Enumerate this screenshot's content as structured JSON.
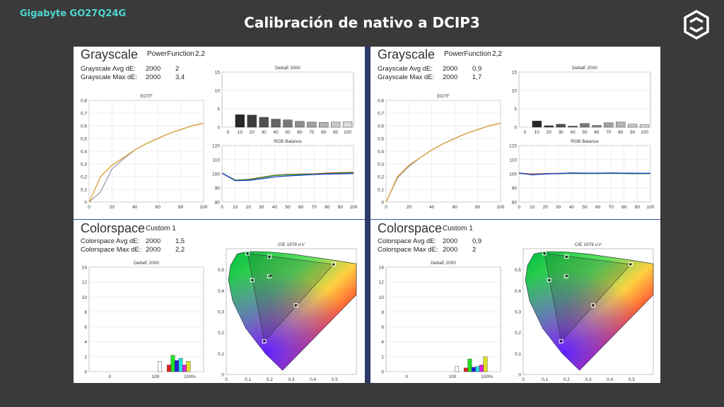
{
  "header": {
    "brand": "Gigabyte GO27Q24G",
    "title": "Calibración de nativo a DCIP3"
  },
  "icons": {
    "logo": "hexagon-logo-icon"
  },
  "colors": {
    "background": "#3a3a3a",
    "brand": "#4fd6d2",
    "red": "#e02020",
    "green": "#1a9a1a",
    "blue": "#1f3fd0",
    "eotf_measured": "#9a9ab0",
    "eotf_target": "#d9a030",
    "divider": "#3355aa"
  },
  "panels": [
    {
      "grayscale": {
        "title": "Grayscale",
        "subtitle": "PowerFunction",
        "gamma": "2,2",
        "stats": [
          {
            "label": "Grayscale Avg dE:",
            "n": "2000",
            "val": "2"
          },
          {
            "label": "Grayscale Max dE:",
            "n": "2000",
            "val": "3,4"
          }
        ]
      },
      "colorspace": {
        "title": "Colorspace",
        "subtitle": "Custom 1",
        "stats": [
          {
            "label": "Colorspace Avg dE:",
            "n": "2000",
            "val": "1,5"
          },
          {
            "label": "Colorspace Max dE:",
            "n": "2000",
            "val": "2,2"
          }
        ]
      }
    },
    {
      "grayscale": {
        "title": "Grayscale",
        "subtitle": "PowerFunction",
        "gamma": "2,2",
        "stats": [
          {
            "label": "Grayscale Avg dE:",
            "n": "2000",
            "val": "0,9"
          },
          {
            "label": "Grayscale Max dE:",
            "n": "2000",
            "val": "1,7"
          }
        ]
      },
      "colorspace": {
        "title": "Colorspace",
        "subtitle": "Custom 1",
        "stats": [
          {
            "label": "Colorspace Avg dE:",
            "n": "2000",
            "val": "0,9"
          },
          {
            "label": "Colorspace Max dE:",
            "n": "2000",
            "val": "2"
          }
        ]
      }
    }
  ],
  "chart_data": [
    {
      "panel": 0,
      "type": "line",
      "title": "EOTF",
      "x": [
        0,
        10,
        20,
        30,
        40,
        50,
        60,
        70,
        80,
        90,
        100
      ],
      "xlim": [
        0,
        100
      ],
      "ylim": [
        0,
        0.8
      ],
      "xticks": [
        "0",
        "20",
        "40",
        "60",
        "80",
        "100"
      ],
      "yticks": [
        "0",
        "0,1",
        "0,2",
        "0,3",
        "0,4",
        "0,5",
        "0,6",
        "0,7",
        "0,8"
      ],
      "series": [
        {
          "color": "#9a9ab0",
          "values": [
            0,
            0.08,
            0.26,
            0.34,
            0.41,
            0.46,
            0.5,
            0.54,
            0.57,
            0.6,
            0.62
          ]
        },
        {
          "color": "#d9a030",
          "values": [
            0,
            0.2,
            0.29,
            0.35,
            0.41,
            0.46,
            0.5,
            0.54,
            0.57,
            0.6,
            0.62
          ]
        }
      ]
    },
    {
      "panel": 0,
      "type": "bar",
      "title": "DeltaE 2000",
      "categories": [
        "0",
        "10",
        "20",
        "30",
        "40",
        "50",
        "60",
        "70",
        "80",
        "90",
        "100"
      ],
      "ylim": [
        0,
        15
      ],
      "yticks": [
        "0",
        "5",
        "10",
        "15"
      ],
      "values": [
        0,
        3.4,
        3.3,
        2.7,
        2.2,
        2.0,
        1.6,
        1.4,
        1.3,
        1.4,
        1.5
      ]
    },
    {
      "panel": 0,
      "type": "line",
      "title": "RGB Balance",
      "x": [
        0,
        10,
        20,
        30,
        40,
        50,
        60,
        70,
        80,
        90,
        100
      ],
      "xlim": [
        0,
        100
      ],
      "ylim": [
        80,
        120
      ],
      "xticks": [
        "0",
        "10",
        "20",
        "30",
        "40",
        "50",
        "60",
        "70",
        "80",
        "90",
        "100"
      ],
      "yticks": [
        "80",
        "90",
        "100",
        "110",
        "120"
      ],
      "series": [
        {
          "color": "#e02020",
          "values": [
            100.5,
            95.5,
            96,
            97.5,
            99,
            99.5,
            99.8,
            100,
            100.5,
            100.8,
            101
          ]
        },
        {
          "color": "#1a9a1a",
          "values": [
            100.5,
            95.5,
            95.8,
            97.3,
            98.8,
            99.3,
            99.6,
            99.8,
            100.2,
            100.5,
            100.7
          ]
        },
        {
          "color": "#1f3fd0",
          "values": [
            100.5,
            95.2,
            95.3,
            96.5,
            97.8,
            98.5,
            99,
            99.5,
            99.8,
            100,
            100.2
          ]
        }
      ]
    },
    {
      "panel": 0,
      "type": "bar",
      "title": "DeltaE 2000",
      "xticks": [
        "0",
        "100",
        "100%"
      ],
      "ylim": [
        0,
        14
      ],
      "yticks": [
        "0",
        "2",
        "4",
        "6",
        "8",
        "10",
        "12",
        "14"
      ],
      "series": [
        {
          "color": "#ffffff",
          "values": [
            1.4
          ]
        },
        {
          "color": "#e02020",
          "values": [
            0.9
          ]
        },
        {
          "color": "#20e020",
          "values": [
            2.2
          ]
        },
        {
          "color": "#2020e0",
          "values": [
            1.5
          ]
        },
        {
          "color": "#20e0e0",
          "values": [
            1.8
          ]
        },
        {
          "color": "#e020e0",
          "values": [
            0.9
          ]
        },
        {
          "color": "#e0e020",
          "values": [
            1.4
          ]
        }
      ]
    },
    {
      "panel": 0,
      "type": "scatter",
      "title": "CIE 1976 u'v'",
      "xlim": [
        0,
        0.6
      ],
      "ylim": [
        0,
        0.6
      ],
      "xticks": [
        "0",
        "0,1",
        "0,2",
        "0,3",
        "0,4",
        "0,5"
      ],
      "yticks": [
        "0",
        "0,1",
        "0,2",
        "0,3",
        "0,4",
        "0,5"
      ],
      "targets": [
        {
          "u": 0.496,
          "v": 0.526
        },
        {
          "u": 0.098,
          "v": 0.578
        },
        {
          "u": 0.175,
          "v": 0.158
        },
        {
          "u": 0.198,
          "v": 0.468
        },
        {
          "u": 0.2,
          "v": 0.562
        },
        {
          "u": 0.12,
          "v": 0.45
        },
        {
          "u": 0.322,
          "v": 0.33
        }
      ],
      "measured": [
        {
          "u": 0.495,
          "v": 0.525
        },
        {
          "u": 0.098,
          "v": 0.577
        },
        {
          "u": 0.176,
          "v": 0.16
        },
        {
          "u": 0.205,
          "v": 0.472
        },
        {
          "u": 0.198,
          "v": 0.56
        },
        {
          "u": 0.121,
          "v": 0.45
        },
        {
          "u": 0.32,
          "v": 0.33
        }
      ]
    },
    {
      "panel": 1,
      "type": "line",
      "title": "EOTF",
      "x": [
        0,
        10,
        20,
        30,
        40,
        50,
        60,
        70,
        80,
        90,
        100
      ],
      "xlim": [
        0,
        100
      ],
      "ylim": [
        0,
        0.8
      ],
      "xticks": [
        "0",
        "20",
        "40",
        "60",
        "80",
        "100"
      ],
      "yticks": [
        "0",
        "0,1",
        "0,2",
        "0,3",
        "0,4",
        "0,5",
        "0,6",
        "0,7",
        "0,8"
      ],
      "series": [
        {
          "color": "#9a9ab0",
          "values": [
            0,
            0.19,
            0.28,
            0.35,
            0.41,
            0.46,
            0.5,
            0.54,
            0.57,
            0.6,
            0.62
          ]
        },
        {
          "color": "#d9a030",
          "values": [
            0,
            0.2,
            0.29,
            0.35,
            0.41,
            0.46,
            0.5,
            0.54,
            0.57,
            0.6,
            0.62
          ]
        }
      ]
    },
    {
      "panel": 1,
      "type": "bar",
      "title": "DeltaE 2000",
      "categories": [
        "0",
        "10",
        "20",
        "30",
        "40",
        "50",
        "60",
        "70",
        "80",
        "90",
        "100"
      ],
      "ylim": [
        0,
        15
      ],
      "yticks": [
        "0",
        "5",
        "10",
        "15"
      ],
      "values": [
        0,
        1.7,
        0.4,
        0.8,
        0.3,
        1.0,
        0.5,
        1.2,
        1.4,
        0.8,
        0.7
      ]
    },
    {
      "panel": 1,
      "type": "line",
      "title": "RGB Balance",
      "x": [
        0,
        10,
        20,
        30,
        40,
        50,
        60,
        70,
        80,
        90,
        100
      ],
      "xlim": [
        0,
        100
      ],
      "ylim": [
        80,
        120
      ],
      "xticks": [
        "0",
        "10",
        "20",
        "30",
        "40",
        "50",
        "60",
        "70",
        "80",
        "90",
        "100"
      ],
      "yticks": [
        "80",
        "90",
        "100",
        "110",
        "120"
      ],
      "series": [
        {
          "color": "#e02020",
          "values": [
            100.5,
            99.8,
            100.2,
            100.3,
            100.5,
            100.4,
            100.3,
            100.4,
            100.3,
            100.2,
            100.3
          ]
        },
        {
          "color": "#1a9a1a",
          "values": [
            100.3,
            99.5,
            100,
            100.1,
            100.3,
            100.2,
            100.2,
            100.3,
            100.2,
            100.1,
            100.2
          ]
        },
        {
          "color": "#1f3fd0",
          "values": [
            100.6,
            99.3,
            99.9,
            100.2,
            100.6,
            100.5,
            100.5,
            100.6,
            100.5,
            100.4,
            100.4
          ]
        }
      ]
    },
    {
      "panel": 1,
      "type": "bar",
      "title": "DeltaE 2000",
      "xticks": [
        "0",
        "100",
        "100%"
      ],
      "ylim": [
        0,
        14
      ],
      "yticks": [
        "0",
        "2",
        "4",
        "6",
        "8",
        "10",
        "12",
        "14"
      ],
      "series": [
        {
          "color": "#ffffff",
          "values": [
            0.7
          ]
        },
        {
          "color": "#e02020",
          "values": [
            0.5
          ]
        },
        {
          "color": "#20e020",
          "values": [
            1.7
          ]
        },
        {
          "color": "#2020e0",
          "values": [
            0.6
          ]
        },
        {
          "color": "#20e0e0",
          "values": [
            0.7
          ]
        },
        {
          "color": "#e020e0",
          "values": [
            0.9
          ]
        },
        {
          "color": "#e0e020",
          "values": [
            2.0
          ]
        }
      ]
    },
    {
      "panel": 1,
      "type": "scatter",
      "title": "CIE 1976 u'v'",
      "xlim": [
        0,
        0.6
      ],
      "ylim": [
        0,
        0.6
      ],
      "xticks": [
        "0",
        "0,1",
        "0,2",
        "0,3",
        "0,4",
        "0,5"
      ],
      "yticks": [
        "0",
        "0,1",
        "0,2",
        "0,3",
        "0,4",
        "0,5"
      ],
      "targets": [
        {
          "u": 0.496,
          "v": 0.526
        },
        {
          "u": 0.098,
          "v": 0.578
        },
        {
          "u": 0.175,
          "v": 0.158
        },
        {
          "u": 0.198,
          "v": 0.468
        },
        {
          "u": 0.2,
          "v": 0.562
        },
        {
          "u": 0.12,
          "v": 0.45
        },
        {
          "u": 0.322,
          "v": 0.33
        }
      ],
      "measured": [
        {
          "u": 0.495,
          "v": 0.526
        },
        {
          "u": 0.098,
          "v": 0.578
        },
        {
          "u": 0.175,
          "v": 0.159
        },
        {
          "u": 0.202,
          "v": 0.471
        },
        {
          "u": 0.2,
          "v": 0.561
        },
        {
          "u": 0.12,
          "v": 0.45
        },
        {
          "u": 0.322,
          "v": 0.33
        }
      ]
    }
  ]
}
